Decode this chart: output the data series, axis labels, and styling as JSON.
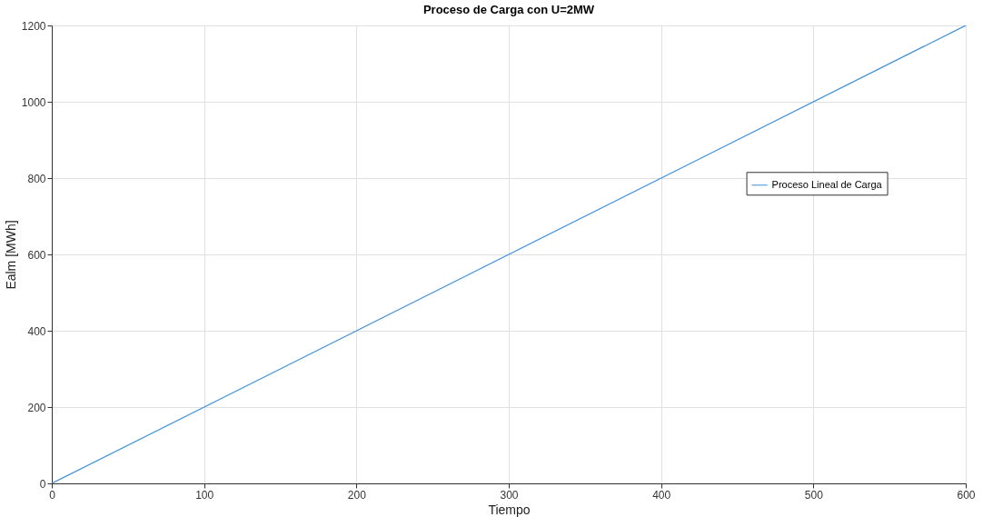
{
  "chart_data": {
    "type": "line",
    "title": "Proceso de Carga con U=2MW",
    "xlabel": "Tiempo",
    "ylabel": "Ealm [MWh]",
    "x": [
      0,
      600
    ],
    "series": [
      {
        "name": "Proceso Lineal de Carga",
        "color": "#3b8fd9",
        "values": [
          0,
          1200
        ]
      }
    ],
    "xlim": [
      0,
      600
    ],
    "xticks": [
      0,
      100,
      200,
      300,
      400,
      500,
      600
    ],
    "ylim": [
      0,
      1200
    ],
    "yticks": [
      0,
      200,
      400,
      600,
      800,
      1000,
      1200
    ],
    "grid": true,
    "legend": "right",
    "marker": "none",
    "line_style": "solid"
  }
}
